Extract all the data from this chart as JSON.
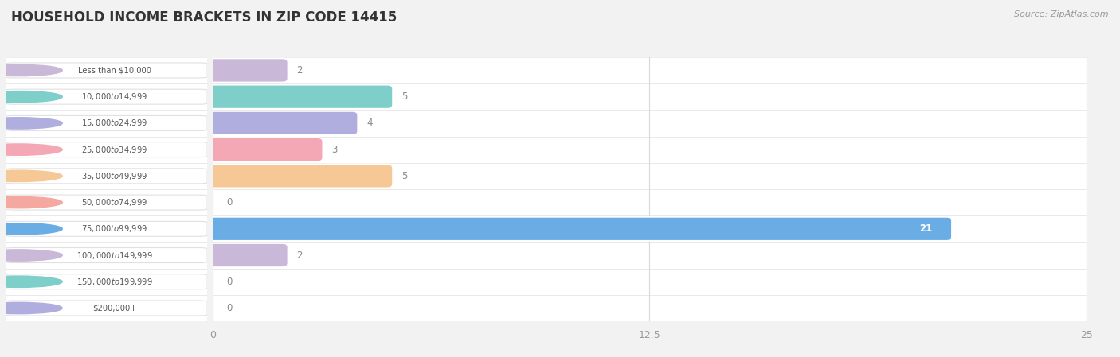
{
  "title": "HOUSEHOLD INCOME BRACKETS IN ZIP CODE 14415",
  "source": "Source: ZipAtlas.com",
  "categories": [
    "Less than $10,000",
    "$10,000 to $14,999",
    "$15,000 to $24,999",
    "$25,000 to $34,999",
    "$35,000 to $49,999",
    "$50,000 to $74,999",
    "$75,000 to $99,999",
    "$100,000 to $149,999",
    "$150,000 to $199,999",
    "$200,000+"
  ],
  "values": [
    2,
    5,
    4,
    3,
    5,
    0,
    21,
    2,
    0,
    0
  ],
  "bar_colors": [
    "#c9b8d8",
    "#7ececa",
    "#b0aede",
    "#f4a7b5",
    "#f5c896",
    "#f4a8a0",
    "#6aade4",
    "#c9b8d8",
    "#7ececa",
    "#b0aede"
  ],
  "xlim": [
    0,
    25
  ],
  "xticks": [
    0,
    12.5,
    25
  ],
  "background_color": "#f2f2f2",
  "row_bg_color": "#ffffff",
  "title_fontsize": 12,
  "bar_height": 0.6,
  "pill_color": "#ffffff",
  "pill_edge_color": "#e0e0e0",
  "value_label_inside_color": "#ffffff",
  "value_label_outside_color": "#888888",
  "grid_color": "#d8d8d8",
  "label_text_color": "#555555",
  "tick_color": "#999999",
  "title_color": "#333333"
}
